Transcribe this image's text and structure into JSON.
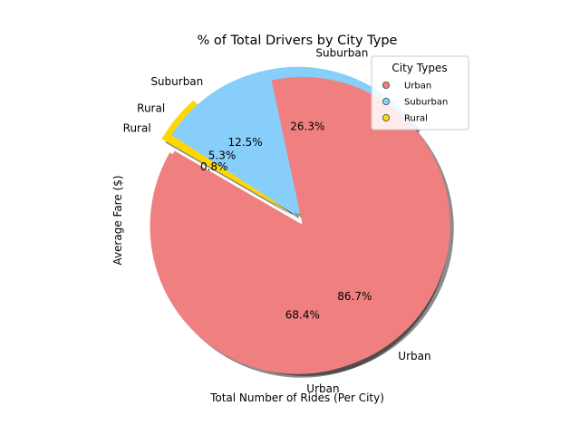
{
  "chart_data": {
    "type": "pie",
    "title": "% of Total Drivers by City Type",
    "xlabel": "Total Number of Rides (Per City)",
    "ylabel": "Average Fare ($)",
    "legend": {
      "title": "City Types",
      "position": "top-right",
      "entries": [
        {
          "label": "Urban",
          "color": "#f08080"
        },
        {
          "label": "Suburban",
          "color": "#87cefa"
        },
        {
          "label": "Rural",
          "color": "#ffd700"
        }
      ]
    },
    "pies": [
      {
        "name": "",
        "slices": [
          {
            "label": "Urban",
            "pct_label": "68.4%",
            "value": 68.4,
            "color": "#f08080"
          },
          {
            "label": "Suburban",
            "pct_label": "26.3%",
            "value": 26.3,
            "color": "#87cefa"
          },
          {
            "label": "Rural",
            "pct_label": "5.3%",
            "value": 5.3,
            "color": "#ffd700"
          }
        ]
      },
      {
        "name": "",
        "slices": [
          {
            "label": "Urban",
            "pct_label": "86.7%",
            "value": 86.7,
            "color": "#f08080"
          },
          {
            "label": "Suburban",
            "pct_label": "12.5%",
            "value": 12.5,
            "color": "#87cefa"
          },
          {
            "label": "Rural",
            "pct_label": "0.8%",
            "value": 0.8,
            "color": "#ffd700"
          }
        ]
      }
    ]
  }
}
